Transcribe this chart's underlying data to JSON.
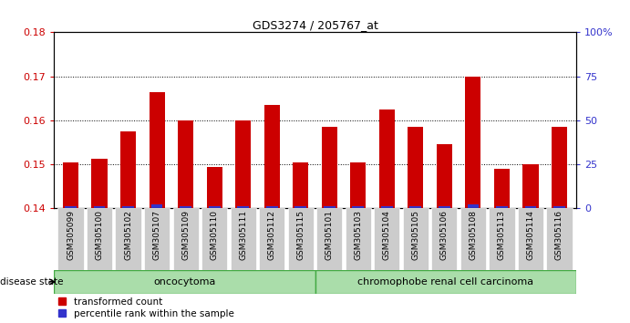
{
  "title": "GDS3274 / 205767_at",
  "samples": [
    "GSM305099",
    "GSM305100",
    "GSM305102",
    "GSM305107",
    "GSM305109",
    "GSM305110",
    "GSM305111",
    "GSM305112",
    "GSM305115",
    "GSM305101",
    "GSM305103",
    "GSM305104",
    "GSM305105",
    "GSM305106",
    "GSM305108",
    "GSM305113",
    "GSM305114",
    "GSM305116"
  ],
  "transformed_count": [
    0.1505,
    0.1512,
    0.1575,
    0.1665,
    0.16,
    0.1495,
    0.16,
    0.1635,
    0.1505,
    0.1585,
    0.1505,
    0.1625,
    0.1585,
    0.1545,
    0.17,
    0.149,
    0.15,
    0.1585
  ],
  "percentile_rank": [
    1.0,
    1.0,
    1.0,
    2.0,
    1.0,
    1.0,
    1.0,
    1.0,
    1.0,
    1.0,
    1.0,
    1.0,
    1.0,
    1.0,
    2.0,
    1.0,
    1.0,
    1.0
  ],
  "ylim_left": [
    0.14,
    0.18
  ],
  "ylim_right": [
    0,
    100
  ],
  "yticks_left": [
    0.14,
    0.15,
    0.16,
    0.17,
    0.18
  ],
  "yticks_right": [
    0,
    25,
    50,
    75,
    100
  ],
  "ytick_labels_right": [
    "0",
    "25",
    "50",
    "75",
    "100%"
  ],
  "bar_color_red": "#CC0000",
  "bar_color_blue": "#3333CC",
  "group1_label": "oncocytoma",
  "group2_label": "chromophobe renal cell carcinoma",
  "group1_count": 9,
  "group2_count": 9,
  "disease_state_label": "disease state",
  "legend_red_label": "transformed count",
  "legend_blue_label": "percentile rank within the sample",
  "bar_width": 0.55,
  "blue_bar_width": 0.4,
  "base_value": 0.14,
  "group_bg_color": "#aaddaa",
  "group_border_color": "#44aa44",
  "tick_label_bg": "#cccccc",
  "bg_color": "#ffffff"
}
